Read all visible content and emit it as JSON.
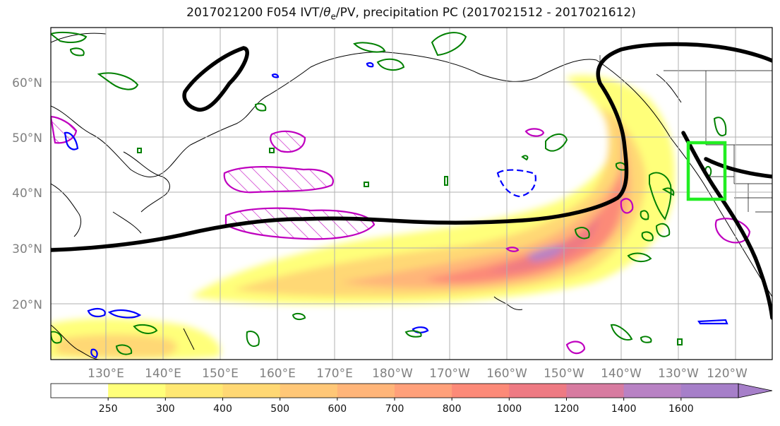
{
  "title": {
    "prefix": "2017021200 F054 IVT/",
    "theta": "θ",
    "sub": "e",
    "suffix": "/PV, precipitation PC (2017021512 - 2017021612)"
  },
  "lat_labels": [
    "60°N",
    "50°N",
    "40°N",
    "30°N",
    "20°N"
  ],
  "lon_labels": [
    "130°E",
    "140°E",
    "150°E",
    "160°E",
    "170°E",
    "180°W",
    "170°W",
    "160°W",
    "150°W",
    "140°W",
    "130°W",
    "120°W"
  ],
  "colorbar": {
    "ticks": [
      "250",
      "300",
      "400",
      "500",
      "600",
      "700",
      "800",
      "1000",
      "1200",
      "1400",
      "1600"
    ],
    "colors": [
      "#ffffff",
      "#ffff7a",
      "#ffe873",
      "#ffd874",
      "#ffc777",
      "#ffb579",
      "#ffa07a",
      "#fc8a78",
      "#ee7a83",
      "#d77ba0",
      "#b882c4",
      "#a67fc9"
    ]
  },
  "colors": {
    "jet": "#000000",
    "pv_low": "#0000ff",
    "pv_high": "#bf00bf",
    "precip": "#008000",
    "target_box": "#22ee22"
  }
}
